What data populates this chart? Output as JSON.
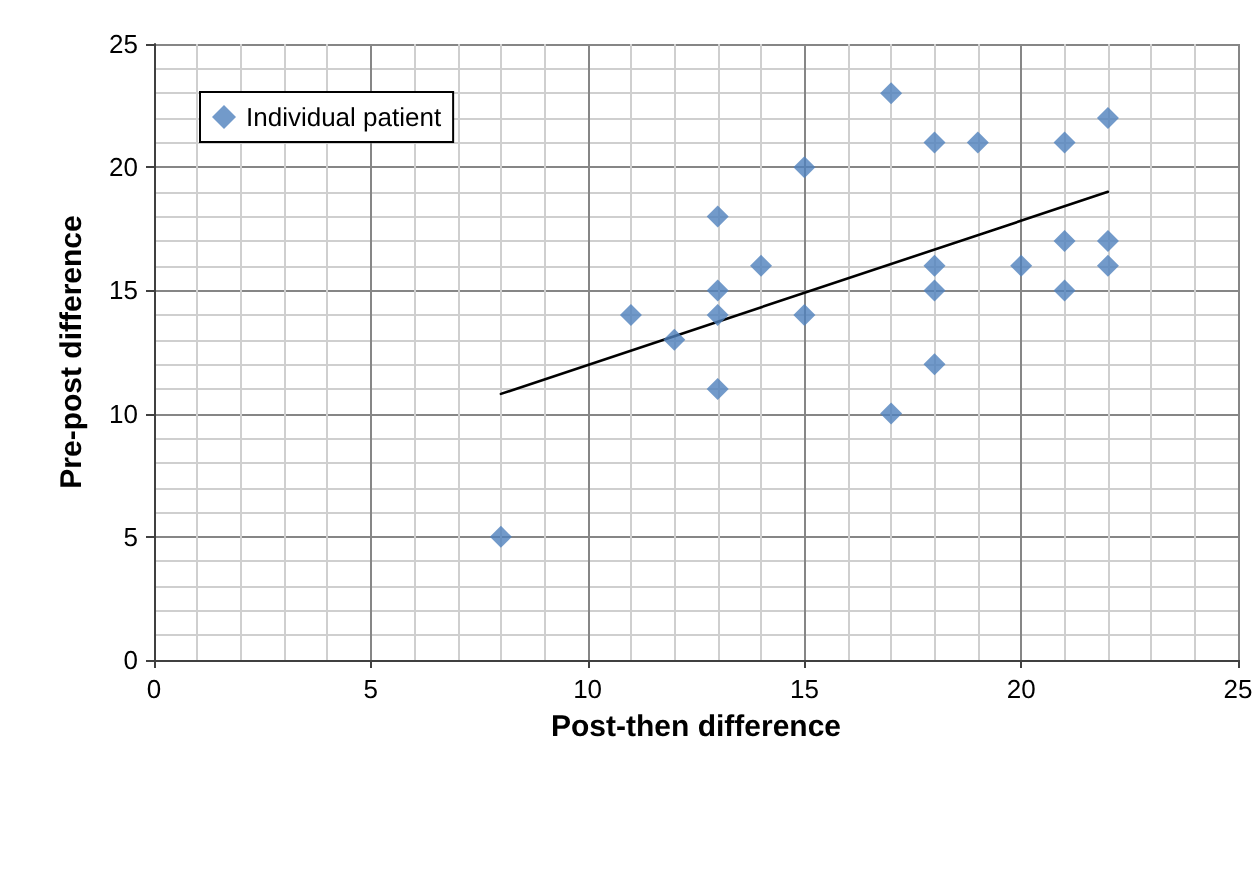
{
  "chart_data": {
    "type": "scatter",
    "xlabel": "Post-then difference",
    "ylabel": "Pre-post difference",
    "xlim": [
      0,
      25
    ],
    "xticks": [
      0,
      5,
      10,
      15,
      20,
      25
    ],
    "ylim": [
      0,
      25
    ],
    "yticks": [
      0,
      5,
      10,
      15,
      20,
      25
    ],
    "grid": true,
    "legend": "top left",
    "marker": "diamond",
    "series": [
      {
        "name": "Individual patient",
        "color": "#4f81bd",
        "x": [
          8,
          11,
          12,
          13,
          13,
          13,
          13,
          14,
          15,
          15,
          17,
          17,
          18,
          18,
          18,
          18,
          19,
          20,
          21,
          21,
          21,
          22,
          22,
          22
        ],
        "values": [
          5,
          14,
          13,
          18,
          15,
          14,
          11,
          16,
          20,
          14,
          23,
          10,
          21,
          16,
          15,
          12,
          21,
          16,
          21,
          17,
          15,
          22,
          17,
          16
        ]
      },
      {
        "type": "line",
        "color": "#000000",
        "x": [
          8,
          22
        ],
        "values": [
          10.8,
          19
        ],
        "marker": "none",
        "line_style": "solid"
      }
    ]
  }
}
